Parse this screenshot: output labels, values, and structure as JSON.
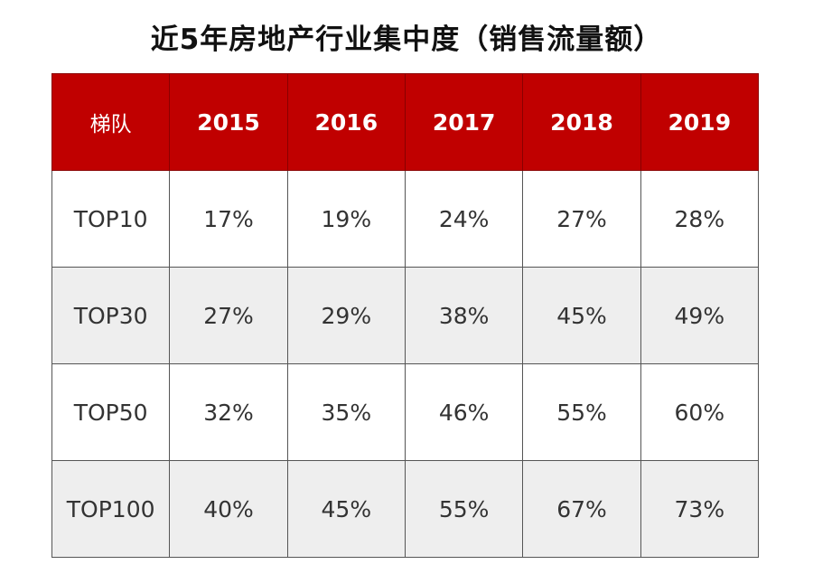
{
  "title": "近5年房地产行业集中度（销售流量额）",
  "colors": {
    "header_bg": "#c00000",
    "header_text": "#ffffff",
    "shaded_row": "#eeeeee"
  },
  "table": {
    "headers": [
      "梯队",
      "2015",
      "2016",
      "2017",
      "2018",
      "2019"
    ],
    "rows": [
      {
        "tier": "TOP10",
        "values": [
          "17%",
          "19%",
          "24%",
          "27%",
          "28%"
        ]
      },
      {
        "tier": "TOP30",
        "values": [
          "27%",
          "29%",
          "38%",
          "45%",
          "49%"
        ]
      },
      {
        "tier": "TOP50",
        "values": [
          "32%",
          "35%",
          "46%",
          "55%",
          "60%"
        ]
      },
      {
        "tier": "TOP100",
        "values": [
          "40%",
          "45%",
          "55%",
          "67%",
          "73%"
        ]
      }
    ]
  }
}
